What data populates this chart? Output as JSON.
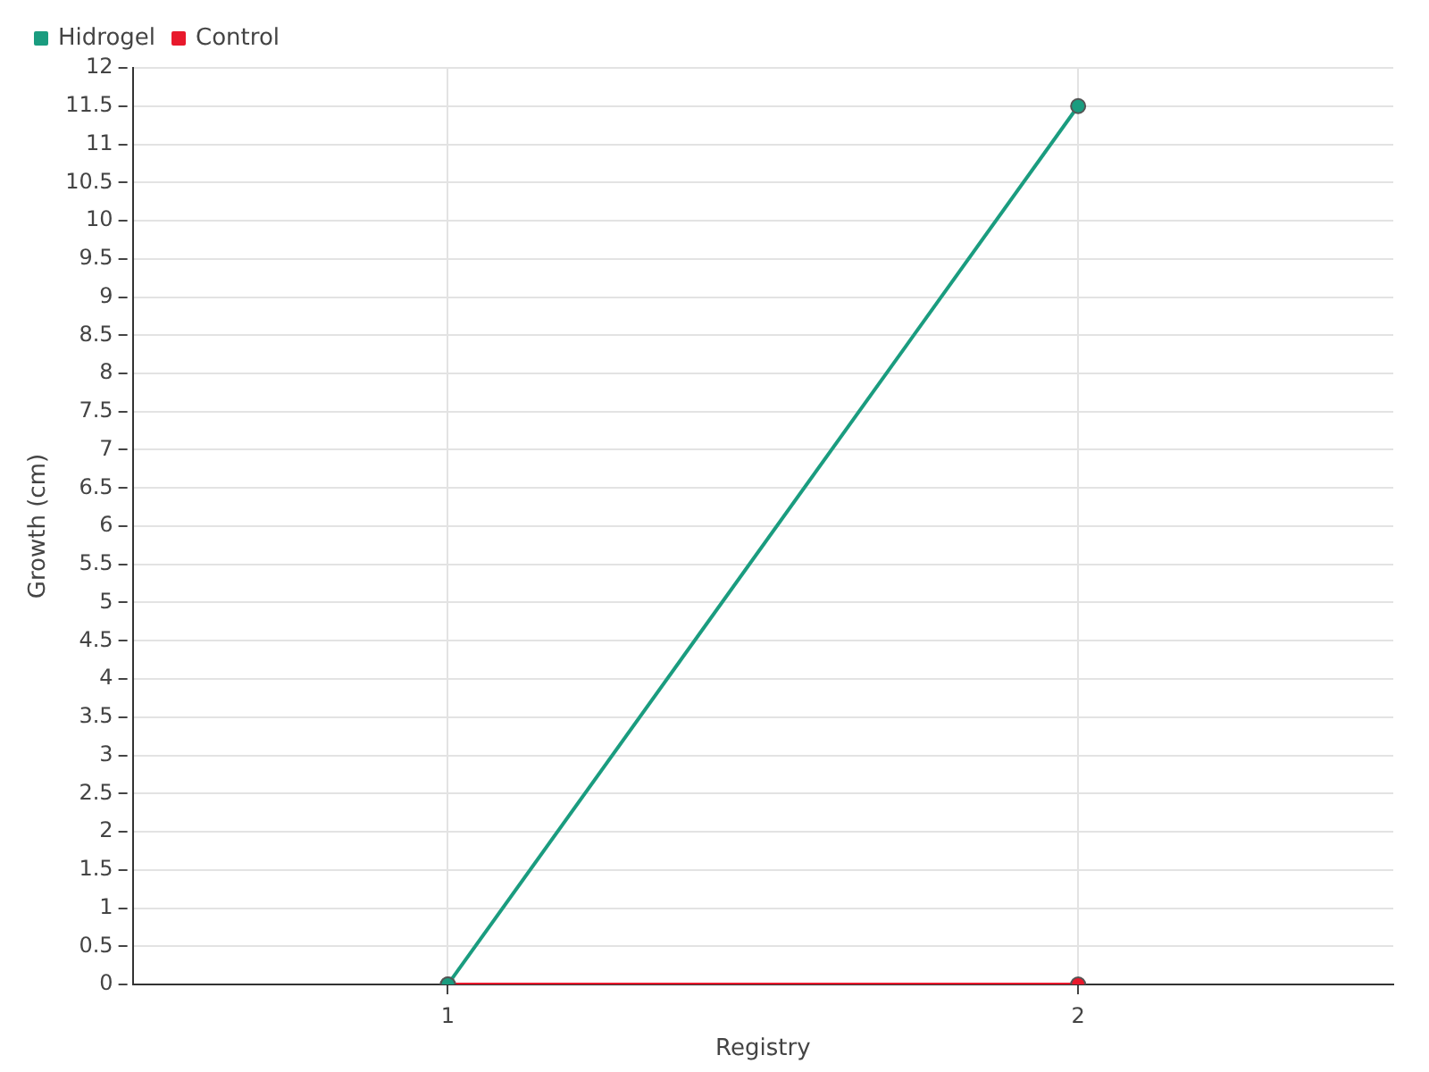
{
  "chart_data": {
    "type": "line",
    "xlabel": "Registry",
    "ylabel": "Growth (cm)",
    "categories": [
      "1",
      "2"
    ],
    "series": [
      {
        "name": "Hidrogel",
        "color": "#1a9c7f",
        "values": [
          0,
          11.5
        ]
      },
      {
        "name": "Control",
        "color": "#e8192c",
        "values": [
          0,
          0
        ]
      }
    ],
    "ylim": [
      0,
      12
    ],
    "yticks": [
      0,
      0.5,
      1,
      1.5,
      2,
      2.5,
      3,
      3.5,
      4,
      4.5,
      5,
      5.5,
      6,
      6.5,
      7,
      7.5,
      8,
      8.5,
      9,
      9.5,
      10,
      10.5,
      11,
      11.5,
      12
    ],
    "grid": true,
    "legend": "top left",
    "marker": "circle",
    "line_style": "solid"
  }
}
